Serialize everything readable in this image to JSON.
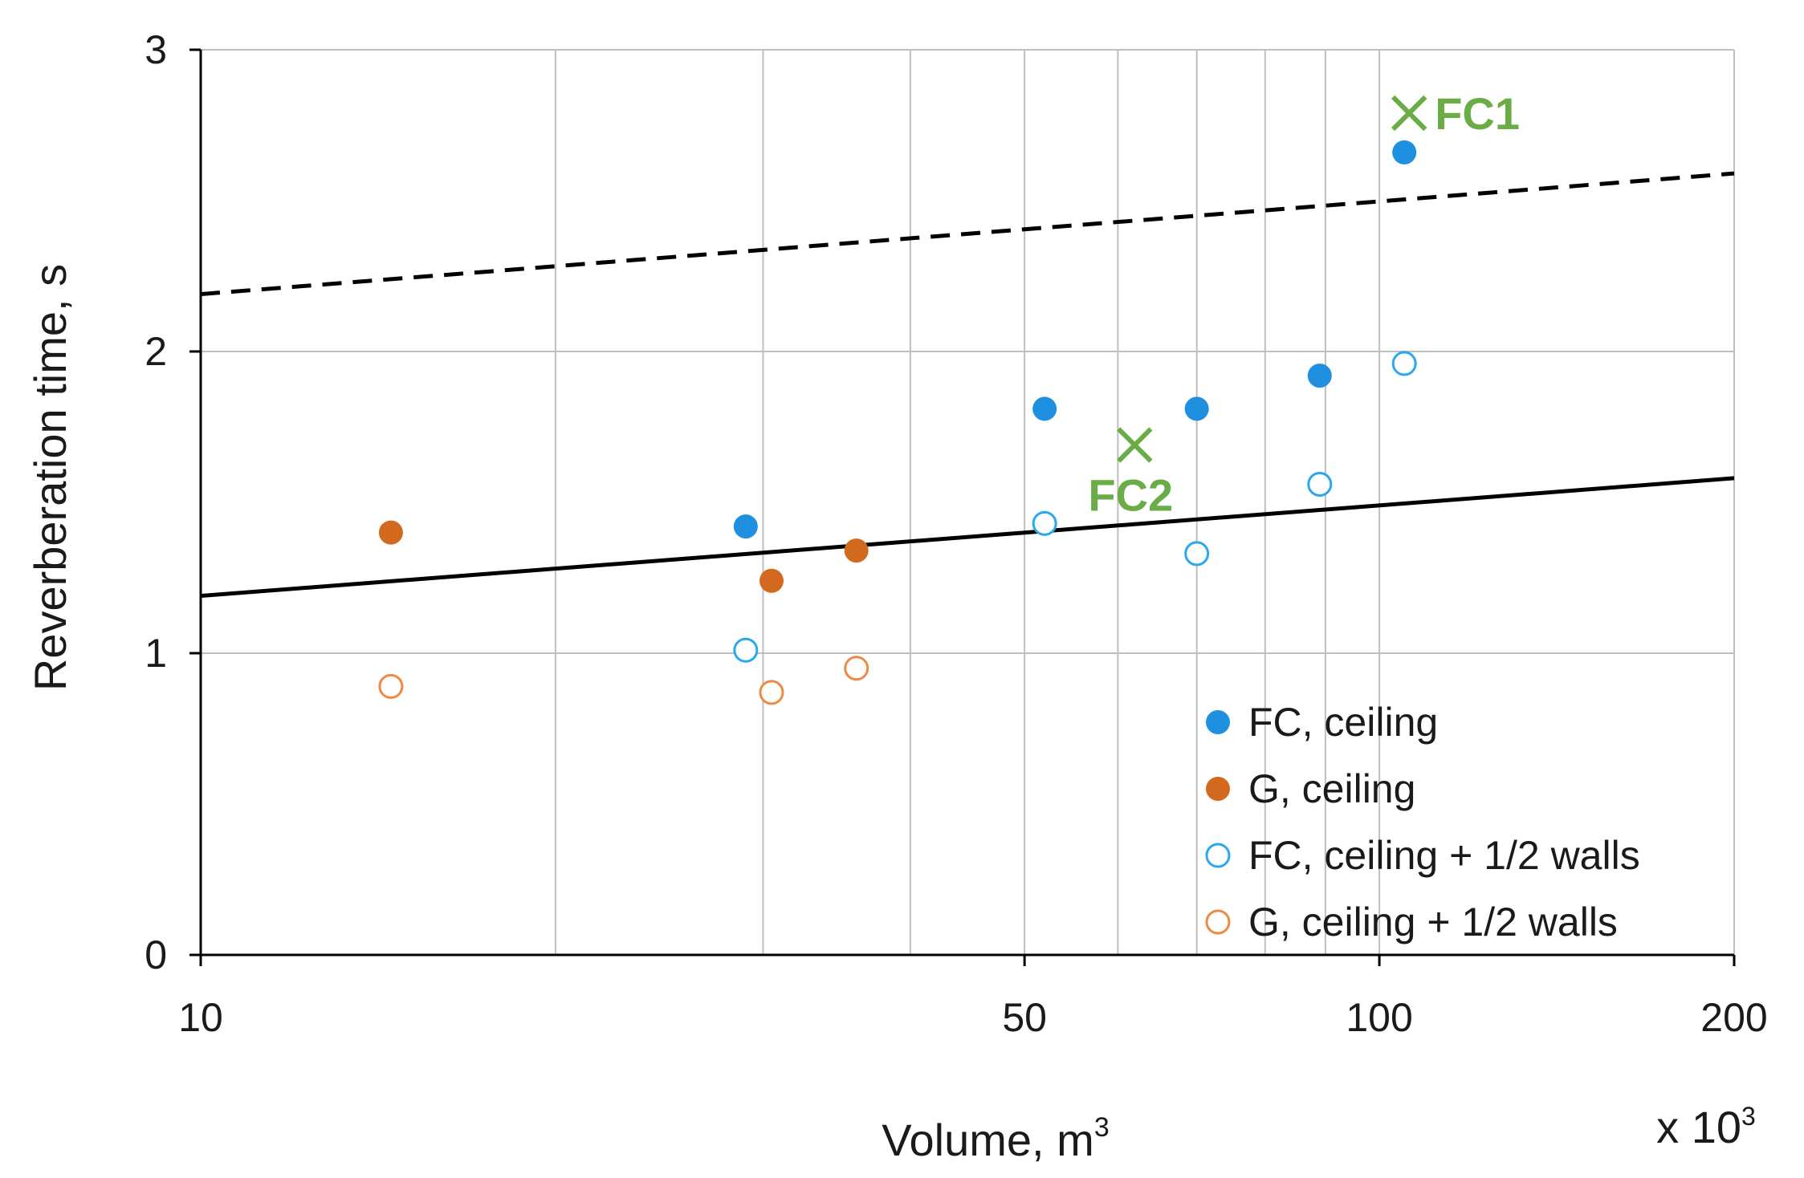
{
  "chart_data": {
    "type": "scatter",
    "title": "",
    "xlabel": "Volume, m",
    "xlabel_superscript": "3",
    "x_multiplier": "x 10",
    "x_multiplier_superscript": "3",
    "ylabel": "Reverberation time, s",
    "x_scale": "log",
    "xlim": [
      10,
      200
    ],
    "ylim": [
      0,
      3
    ],
    "x_tick_labels": [
      {
        "value": 10,
        "label": "10"
      },
      {
        "value": 50,
        "label": "50"
      },
      {
        "value": 100,
        "label": "100"
      },
      {
        "value": 200,
        "label": "200"
      }
    ],
    "x_gridlines": [
      20,
      30,
      40,
      50,
      60,
      70,
      80,
      90,
      100
    ],
    "y_ticks": [
      0,
      1,
      2,
      3
    ],
    "grid": true,
    "legend_position": "bottom-right",
    "series": [
      {
        "name": "FC, ceiling",
        "marker": "filled-circle",
        "color": "#1f8fe0",
        "points": [
          [
            29,
            1.42
          ],
          [
            52,
            1.81
          ],
          [
            70,
            1.81
          ],
          [
            89,
            1.92
          ],
          [
            105,
            2.66
          ]
        ]
      },
      {
        "name": "G, ceiling",
        "marker": "filled-circle",
        "color": "#d2691e",
        "points": [
          [
            14.5,
            1.4
          ],
          [
            30.5,
            1.24
          ],
          [
            36,
            1.34
          ]
        ]
      },
      {
        "name": "FC, ceiling + 1/2 walls",
        "marker": "open-circle",
        "color": "#2aa8ee",
        "points": [
          [
            29,
            1.01
          ],
          [
            52,
            1.43
          ],
          [
            70,
            1.33
          ],
          [
            89,
            1.56
          ],
          [
            105,
            1.96
          ]
        ]
      },
      {
        "name": "G, ceiling + 1/2 walls",
        "marker": "open-circle",
        "color": "#ee8a45",
        "points": [
          [
            14.5,
            0.89
          ],
          [
            30.5,
            0.87
          ],
          [
            36,
            0.95
          ]
        ]
      }
    ],
    "reference_lines": [
      {
        "name": "upper-limit",
        "style": "dashed",
        "color": "#000000",
        "points": [
          [
            10,
            2.19
          ],
          [
            200,
            2.59
          ]
        ]
      },
      {
        "name": "lower-limit",
        "style": "solid",
        "color": "#000000",
        "points": [
          [
            10,
            1.19
          ],
          [
            200,
            1.58
          ]
        ]
      }
    ],
    "annotations": [
      {
        "label": "FC1",
        "marker": "x",
        "color": "#6aac45",
        "x": 106,
        "y": 2.79,
        "label_side": "right"
      },
      {
        "label": "FC2",
        "marker": "x",
        "color": "#6aac45",
        "x": 62,
        "y": 1.69,
        "label_side": "below"
      }
    ]
  }
}
